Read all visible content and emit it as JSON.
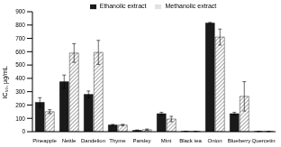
{
  "chart_data": {
    "type": "bar",
    "y_label": "IC₅₀, μg/mL",
    "categories": [
      "Pineapple",
      "Nettle",
      "Dandelion",
      "Thyme",
      "Parsley",
      "Mint",
      "Black tea",
      "Onion",
      "Blueberry",
      "Quercetin"
    ],
    "series": [
      {
        "name": "Ethanolic extract",
        "color": "#1a1a1a",
        "values": [
          220,
          375,
          280,
          50,
          10,
          135,
          3,
          815,
          135,
          2
        ],
        "errors": [
          35,
          50,
          25,
          5,
          3,
          10,
          1,
          5,
          10,
          1
        ]
      },
      {
        "name": "Methanolic extract",
        "color": "#808080",
        "values": [
          150,
          590,
          595,
          50,
          15,
          95,
          3,
          710,
          265,
          2
        ],
        "errors": [
          15,
          70,
          90,
          5,
          5,
          20,
          1,
          60,
          110,
          1
        ]
      }
    ],
    "ylim": [
      0,
      900
    ],
    "yticks": [
      0,
      100,
      200,
      300,
      400,
      500,
      600,
      700,
      800,
      900
    ],
    "legend": "top"
  }
}
